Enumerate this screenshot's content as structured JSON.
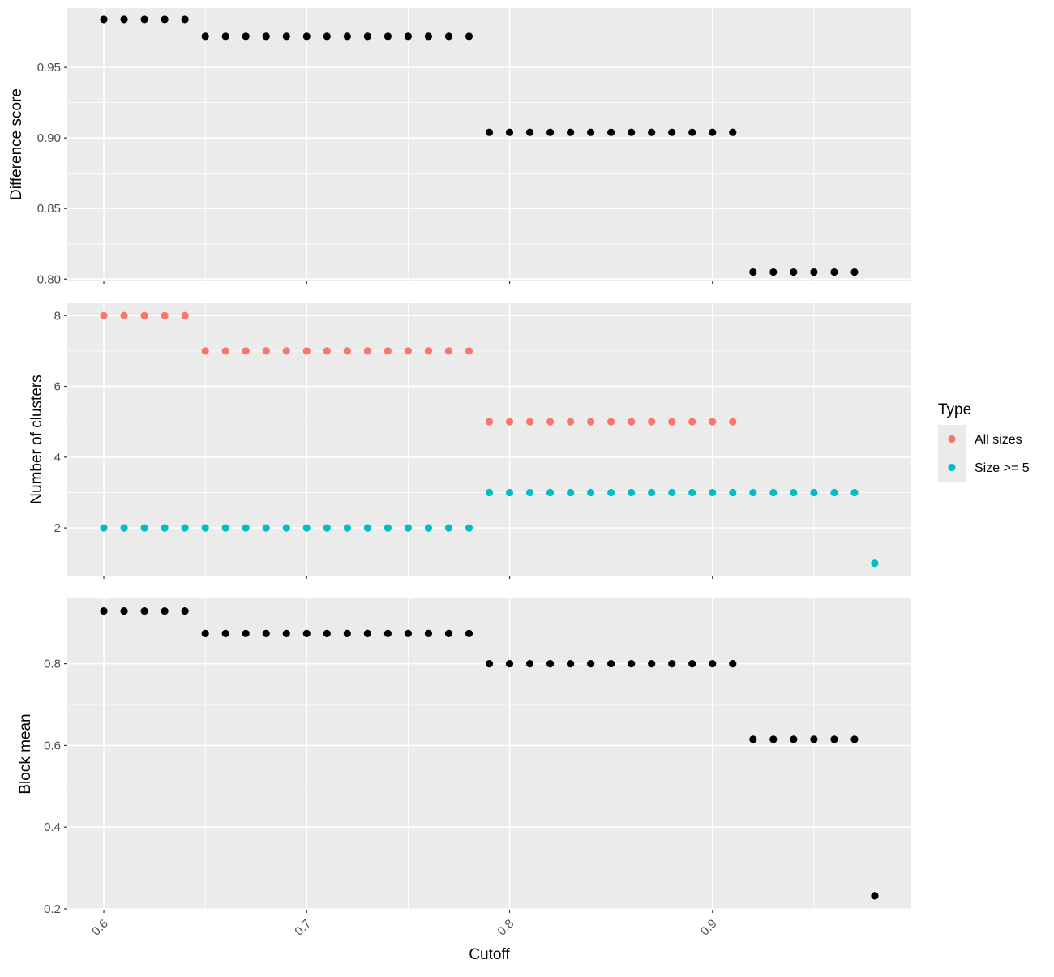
{
  "colors": {
    "panel_bg": "#ebebeb",
    "grid": "#ffffff",
    "tick": "#333333",
    "tick_text": "#4d4d4d",
    "point_black": "#000000",
    "all_sizes": "#f8766d",
    "size_ge5": "#00bfc4"
  },
  "xlabel": "Cutoff",
  "legend": {
    "title": "Type",
    "items": [
      {
        "label": "All sizes",
        "color": "#f8766d"
      },
      {
        "label": "Size >= 5",
        "color": "#00bfc4"
      }
    ]
  },
  "chart_data": [
    {
      "type": "scatter",
      "ylabel": "Difference score",
      "xlim": [
        0.582,
        0.998
      ],
      "ylim": [
        0.799,
        0.992
      ],
      "x_ticks": [
        0.6,
        0.7,
        0.8,
        0.9
      ],
      "x_tick_labels": [
        "0.6",
        "0.7",
        "0.8",
        "0.9"
      ],
      "y_ticks": [
        0.8,
        0.85,
        0.9,
        0.95
      ],
      "y_tick_labels": [
        "0.80",
        "0.85",
        "0.90",
        "0.95"
      ],
      "series": [
        {
          "color": "#000000",
          "x": [
            0.6,
            0.61,
            0.62,
            0.63,
            0.64,
            0.65,
            0.66,
            0.67,
            0.68,
            0.69,
            0.7,
            0.71,
            0.72,
            0.73,
            0.74,
            0.75,
            0.76,
            0.77,
            0.78,
            0.79,
            0.8,
            0.81,
            0.82,
            0.83,
            0.84,
            0.85,
            0.86,
            0.87,
            0.88,
            0.89,
            0.9,
            0.91,
            0.92,
            0.93,
            0.94,
            0.95,
            0.96,
            0.97
          ],
          "y": [
            0.984,
            0.984,
            0.984,
            0.984,
            0.984,
            0.972,
            0.972,
            0.972,
            0.972,
            0.972,
            0.972,
            0.972,
            0.972,
            0.972,
            0.972,
            0.972,
            0.972,
            0.972,
            0.972,
            0.904,
            0.904,
            0.904,
            0.904,
            0.904,
            0.904,
            0.904,
            0.904,
            0.904,
            0.904,
            0.904,
            0.904,
            0.904,
            0.805,
            0.805,
            0.805,
            0.805,
            0.805,
            0.805
          ]
        }
      ]
    },
    {
      "type": "scatter",
      "ylabel": "Number of clusters",
      "xlim": [
        0.582,
        0.998
      ],
      "ylim": [
        0.65,
        8.35
      ],
      "x_ticks": [
        0.6,
        0.7,
        0.8,
        0.9
      ],
      "x_tick_labels": [
        "0.6",
        "0.7",
        "0.8",
        "0.9"
      ],
      "y_ticks": [
        2,
        4,
        6,
        8
      ],
      "y_tick_labels": [
        "2",
        "4",
        "6",
        "8"
      ],
      "series": [
        {
          "name": "All sizes",
          "color": "#f8766d",
          "x": [
            0.6,
            0.61,
            0.62,
            0.63,
            0.64,
            0.65,
            0.66,
            0.67,
            0.68,
            0.69,
            0.7,
            0.71,
            0.72,
            0.73,
            0.74,
            0.75,
            0.76,
            0.77,
            0.78,
            0.79,
            0.8,
            0.81,
            0.82,
            0.83,
            0.84,
            0.85,
            0.86,
            0.87,
            0.88,
            0.89,
            0.9,
            0.91
          ],
          "y": [
            8,
            8,
            8,
            8,
            8,
            7,
            7,
            7,
            7,
            7,
            7,
            7,
            7,
            7,
            7,
            7,
            7,
            7,
            7,
            5,
            5,
            5,
            5,
            5,
            5,
            5,
            5,
            5,
            5,
            5,
            5,
            5
          ]
        },
        {
          "name": "Size >= 5",
          "color": "#00bfc4",
          "x": [
            0.6,
            0.61,
            0.62,
            0.63,
            0.64,
            0.65,
            0.66,
            0.67,
            0.68,
            0.69,
            0.7,
            0.71,
            0.72,
            0.73,
            0.74,
            0.75,
            0.76,
            0.77,
            0.78,
            0.79,
            0.8,
            0.81,
            0.82,
            0.83,
            0.84,
            0.85,
            0.86,
            0.87,
            0.88,
            0.89,
            0.9,
            0.91,
            0.92,
            0.93,
            0.94,
            0.95,
            0.96,
            0.97,
            0.98
          ],
          "y": [
            2,
            2,
            2,
            2,
            2,
            2,
            2,
            2,
            2,
            2,
            2,
            2,
            2,
            2,
            2,
            2,
            2,
            2,
            2,
            3,
            3,
            3,
            3,
            3,
            3,
            3,
            3,
            3,
            3,
            3,
            3,
            3,
            3,
            3,
            3,
            3,
            3,
            3,
            1
          ]
        }
      ]
    },
    {
      "type": "scatter",
      "ylabel": "Block mean",
      "xlim": [
        0.582,
        0.998
      ],
      "ylim": [
        0.198,
        0.96
      ],
      "x_ticks": [
        0.6,
        0.7,
        0.8,
        0.9
      ],
      "x_tick_labels": [
        "0.6",
        "0.7",
        "0.8",
        "0.9"
      ],
      "y_ticks": [
        0.2,
        0.4,
        0.6,
        0.8
      ],
      "y_tick_labels": [
        "0.2",
        "0.4",
        "0.6",
        "0.8"
      ],
      "series": [
        {
          "color": "#000000",
          "x": [
            0.6,
            0.61,
            0.62,
            0.63,
            0.64,
            0.65,
            0.66,
            0.67,
            0.68,
            0.69,
            0.7,
            0.71,
            0.72,
            0.73,
            0.74,
            0.75,
            0.76,
            0.77,
            0.78,
            0.79,
            0.8,
            0.81,
            0.82,
            0.83,
            0.84,
            0.85,
            0.86,
            0.87,
            0.88,
            0.89,
            0.9,
            0.91,
            0.92,
            0.93,
            0.94,
            0.95,
            0.96,
            0.97,
            0.98
          ],
          "y": [
            0.929,
            0.929,
            0.929,
            0.929,
            0.929,
            0.874,
            0.874,
            0.874,
            0.874,
            0.874,
            0.874,
            0.874,
            0.874,
            0.874,
            0.874,
            0.874,
            0.874,
            0.874,
            0.874,
            0.8,
            0.8,
            0.8,
            0.8,
            0.8,
            0.8,
            0.8,
            0.8,
            0.8,
            0.8,
            0.8,
            0.8,
            0.8,
            0.615,
            0.615,
            0.615,
            0.615,
            0.615,
            0.615,
            0.232
          ]
        }
      ]
    }
  ]
}
